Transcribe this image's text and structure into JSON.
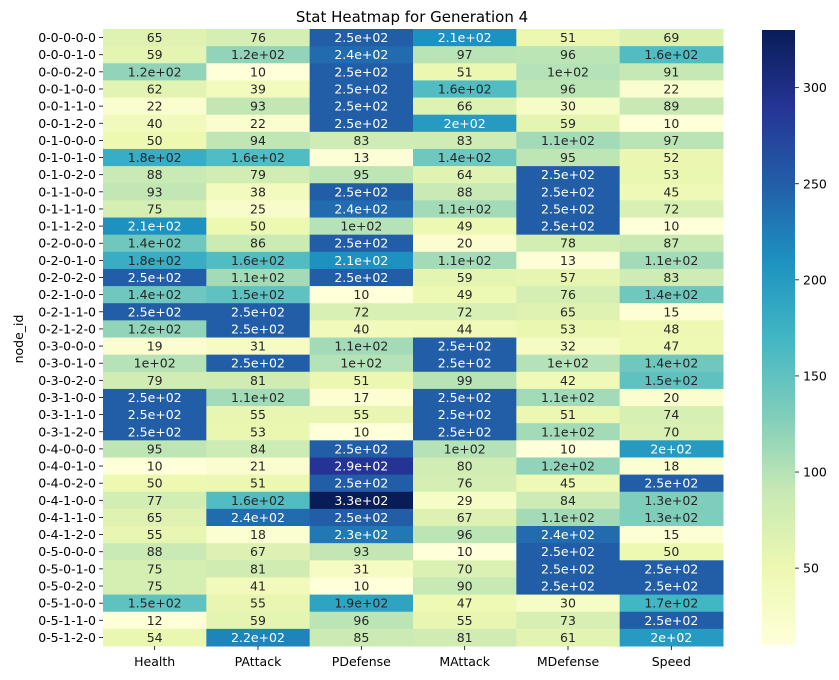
{
  "chart_data": {
    "type": "heatmap",
    "title": "Stat Heatmap for Generation 4",
    "ylabel": "node_id",
    "xlabel": "",
    "columns": [
      "Health",
      "PAttack",
      "PDefense",
      "MAttack",
      "MDefense",
      "Speed"
    ],
    "rows": [
      "0-0-0-0-0",
      "0-0-0-1-0",
      "0-0-0-2-0",
      "0-0-1-0-0",
      "0-0-1-1-0",
      "0-0-1-2-0",
      "0-1-0-0-0",
      "0-1-0-1-0",
      "0-1-0-2-0",
      "0-1-1-0-0",
      "0-1-1-1-0",
      "0-1-1-2-0",
      "0-2-0-0-0",
      "0-2-0-1-0",
      "0-2-0-2-0",
      "0-2-1-0-0",
      "0-2-1-1-0",
      "0-2-1-2-0",
      "0-3-0-0-0",
      "0-3-0-1-0",
      "0-3-0-2-0",
      "0-3-1-0-0",
      "0-3-1-1-0",
      "0-3-1-2-0",
      "0-4-0-0-0",
      "0-4-0-1-0",
      "0-4-0-2-0",
      "0-4-1-0-0",
      "0-4-1-1-0",
      "0-4-1-2-0",
      "0-5-0-0-0",
      "0-5-0-1-0",
      "0-5-0-2-0",
      "0-5-1-0-0",
      "0-5-1-1-0",
      "0-5-1-2-0"
    ],
    "values": [
      [
        65,
        76,
        250,
        210,
        51,
        69
      ],
      [
        59,
        120,
        240,
        97,
        96,
        160
      ],
      [
        120,
        10,
        250,
        51,
        100,
        91
      ],
      [
        62,
        39,
        250,
        160,
        96,
        22
      ],
      [
        22,
        93,
        250,
        66,
        30,
        89
      ],
      [
        40,
        22,
        250,
        200,
        59,
        10
      ],
      [
        50,
        94,
        83,
        83,
        110,
        97
      ],
      [
        180,
        160,
        13,
        140,
        95,
        52
      ],
      [
        88,
        79,
        95,
        64,
        250,
        53
      ],
      [
        93,
        38,
        250,
        88,
        250,
        45
      ],
      [
        75,
        25,
        240,
        110,
        250,
        72
      ],
      [
        210,
        50,
        100,
        49,
        250,
        10
      ],
      [
        140,
        86,
        250,
        20,
        78,
        87
      ],
      [
        180,
        160,
        210,
        110,
        13,
        110
      ],
      [
        250,
        110,
        250,
        59,
        57,
        83
      ],
      [
        140,
        150,
        10,
        49,
        76,
        140
      ],
      [
        250,
        250,
        72,
        72,
        65,
        15
      ],
      [
        120,
        250,
        40,
        44,
        53,
        48
      ],
      [
        19,
        31,
        110,
        250,
        32,
        47
      ],
      [
        100,
        250,
        100,
        250,
        100,
        140
      ],
      [
        79,
        81,
        51,
        99,
        42,
        150
      ],
      [
        250,
        110,
        17,
        250,
        110,
        20
      ],
      [
        250,
        55,
        55,
        250,
        51,
        74
      ],
      [
        250,
        53,
        10,
        250,
        110,
        70
      ],
      [
        95,
        84,
        250,
        100,
        10,
        200
      ],
      [
        10,
        21,
        290,
        80,
        120,
        18
      ],
      [
        50,
        51,
        250,
        76,
        45,
        250
      ],
      [
        77,
        160,
        330,
        29,
        84,
        130
      ],
      [
        65,
        240,
        250,
        67,
        110,
        130
      ],
      [
        55,
        18,
        230,
        96,
        240,
        15
      ],
      [
        88,
        67,
        93,
        10,
        250,
        50
      ],
      [
        75,
        81,
        31,
        70,
        250,
        250
      ],
      [
        75,
        41,
        10,
        90,
        250,
        250
      ],
      [
        150,
        55,
        190,
        47,
        30,
        170
      ],
      [
        12,
        59,
        96,
        55,
        73,
        250
      ],
      [
        54,
        220,
        85,
        81,
        61,
        200
      ]
    ],
    "labels": [
      [
        "65",
        "76",
        "2.5e+02",
        "2.1e+02",
        "51",
        "69"
      ],
      [
        "59",
        "1.2e+02",
        "2.4e+02",
        "97",
        "96",
        "1.6e+02"
      ],
      [
        "1.2e+02",
        "10",
        "2.5e+02",
        "51",
        "1e+02",
        "91"
      ],
      [
        "62",
        "39",
        "2.5e+02",
        "1.6e+02",
        "96",
        "22"
      ],
      [
        "22",
        "93",
        "2.5e+02",
        "66",
        "30",
        "89"
      ],
      [
        "40",
        "22",
        "2.5e+02",
        "2e+02",
        "59",
        "10"
      ],
      [
        "50",
        "94",
        "83",
        "83",
        "1.1e+02",
        "97"
      ],
      [
        "1.8e+02",
        "1.6e+02",
        "13",
        "1.4e+02",
        "95",
        "52"
      ],
      [
        "88",
        "79",
        "95",
        "64",
        "2.5e+02",
        "53"
      ],
      [
        "93",
        "38",
        "2.5e+02",
        "88",
        "2.5e+02",
        "45"
      ],
      [
        "75",
        "25",
        "2.4e+02",
        "1.1e+02",
        "2.5e+02",
        "72"
      ],
      [
        "2.1e+02",
        "50",
        "1e+02",
        "49",
        "2.5e+02",
        "10"
      ],
      [
        "1.4e+02",
        "86",
        "2.5e+02",
        "20",
        "78",
        "87"
      ],
      [
        "1.8e+02",
        "1.6e+02",
        "2.1e+02",
        "1.1e+02",
        "13",
        "1.1e+02"
      ],
      [
        "2.5e+02",
        "1.1e+02",
        "2.5e+02",
        "59",
        "57",
        "83"
      ],
      [
        "1.4e+02",
        "1.5e+02",
        "10",
        "49",
        "76",
        "1.4e+02"
      ],
      [
        "2.5e+02",
        "2.5e+02",
        "72",
        "72",
        "65",
        "15"
      ],
      [
        "1.2e+02",
        "2.5e+02",
        "40",
        "44",
        "53",
        "48"
      ],
      [
        "19",
        "31",
        "1.1e+02",
        "2.5e+02",
        "32",
        "47"
      ],
      [
        "1e+02",
        "2.5e+02",
        "1e+02",
        "2.5e+02",
        "1e+02",
        "1.4e+02"
      ],
      [
        "79",
        "81",
        "51",
        "99",
        "42",
        "1.5e+02"
      ],
      [
        "2.5e+02",
        "1.1e+02",
        "17",
        "2.5e+02",
        "1.1e+02",
        "20"
      ],
      [
        "2.5e+02",
        "55",
        "55",
        "2.5e+02",
        "51",
        "74"
      ],
      [
        "2.5e+02",
        "53",
        "10",
        "2.5e+02",
        "1.1e+02",
        "70"
      ],
      [
        "95",
        "84",
        "2.5e+02",
        "1e+02",
        "10",
        "2e+02"
      ],
      [
        "10",
        "21",
        "2.9e+02",
        "80",
        "1.2e+02",
        "18"
      ],
      [
        "50",
        "51",
        "2.5e+02",
        "76",
        "45",
        "2.5e+02"
      ],
      [
        "77",
        "1.6e+02",
        "3.3e+02",
        "29",
        "84",
        "1.3e+02"
      ],
      [
        "65",
        "2.4e+02",
        "2.5e+02",
        "67",
        "1.1e+02",
        "1.3e+02"
      ],
      [
        "55",
        "18",
        "2.3e+02",
        "96",
        "2.4e+02",
        "15"
      ],
      [
        "88",
        "67",
        "93",
        "10",
        "2.5e+02",
        "50"
      ],
      [
        "75",
        "81",
        "31",
        "70",
        "2.5e+02",
        "2.5e+02"
      ],
      [
        "75",
        "41",
        "10",
        "90",
        "2.5e+02",
        "2.5e+02"
      ],
      [
        "1.5e+02",
        "55",
        "1.9e+02",
        "47",
        "30",
        "1.7e+02"
      ],
      [
        "12",
        "59",
        "96",
        "55",
        "73",
        "2.5e+02"
      ],
      [
        "54",
        "2.2e+02",
        "85",
        "81",
        "61",
        "2e+02"
      ]
    ],
    "colorbar": {
      "min": 10,
      "max": 330,
      "ticks": [
        50,
        100,
        150,
        200,
        250,
        300
      ],
      "colormap": "YlGnBu",
      "stops": [
        "#ffffd9",
        "#edf8b1",
        "#c7e9b4",
        "#7fcdbb",
        "#41b6c4",
        "#1d91c0",
        "#225ea8",
        "#253494",
        "#081d58"
      ]
    },
    "grid": false,
    "legend": "colorbar-right"
  }
}
